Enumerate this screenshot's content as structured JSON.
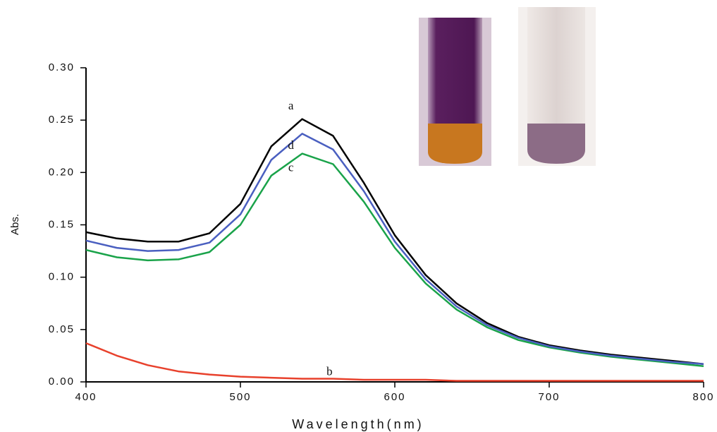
{
  "chart_data": {
    "type": "line",
    "xlabel": "Wavelength(nm)",
    "ylabel": "Abs.",
    "x": [
      400,
      420,
      440,
      460,
      480,
      500,
      520,
      540,
      560,
      580,
      600,
      620,
      640,
      660,
      680,
      700,
      720,
      740,
      760,
      780,
      800
    ],
    "series": [
      {
        "name": "a",
        "color": "#000000",
        "values": [
          0.143,
          0.137,
          0.134,
          0.134,
          0.142,
          0.17,
          0.225,
          0.251,
          0.235,
          0.19,
          0.14,
          0.102,
          0.075,
          0.056,
          0.043,
          0.035,
          0.03,
          0.026,
          0.023,
          0.02,
          0.017
        ]
      },
      {
        "name": "b",
        "color": "#e8412c",
        "values": [
          0.037,
          0.025,
          0.016,
          0.01,
          0.007,
          0.005,
          0.004,
          0.003,
          0.003,
          0.002,
          0.002,
          0.002,
          0.001,
          0.001,
          0.001,
          0.001,
          0.001,
          0.001,
          0.001,
          0.001,
          0.001
        ]
      },
      {
        "name": "c",
        "color": "#1aa34a",
        "values": [
          0.126,
          0.119,
          0.116,
          0.117,
          0.124,
          0.15,
          0.197,
          0.218,
          0.208,
          0.172,
          0.128,
          0.094,
          0.069,
          0.052,
          0.04,
          0.033,
          0.028,
          0.024,
          0.021,
          0.018,
          0.015
        ]
      },
      {
        "name": "d",
        "color": "#4a5fc0",
        "values": [
          0.135,
          0.128,
          0.125,
          0.126,
          0.133,
          0.16,
          0.212,
          0.237,
          0.222,
          0.182,
          0.134,
          0.098,
          0.072,
          0.054,
          0.042,
          0.034,
          0.029,
          0.025,
          0.022,
          0.019,
          0.017
        ]
      }
    ],
    "xlim": [
      400,
      800
    ],
    "xticks": [
      400,
      500,
      600,
      700,
      800
    ],
    "ylim": [
      0,
      0.3
    ],
    "yticks": [
      {
        "value": 0,
        "label": "0.00"
      },
      {
        "value": 0.05,
        "label": "0.05"
      },
      {
        "value": 0.1,
        "label": "0.10"
      },
      {
        "value": 0.15,
        "label": "0.15"
      },
      {
        "value": 0.2,
        "label": "0.20"
      },
      {
        "value": 0.25,
        "label": "0.25"
      },
      {
        "value": 0.3,
        "label": "0.30"
      }
    ],
    "grid": false
  }
}
